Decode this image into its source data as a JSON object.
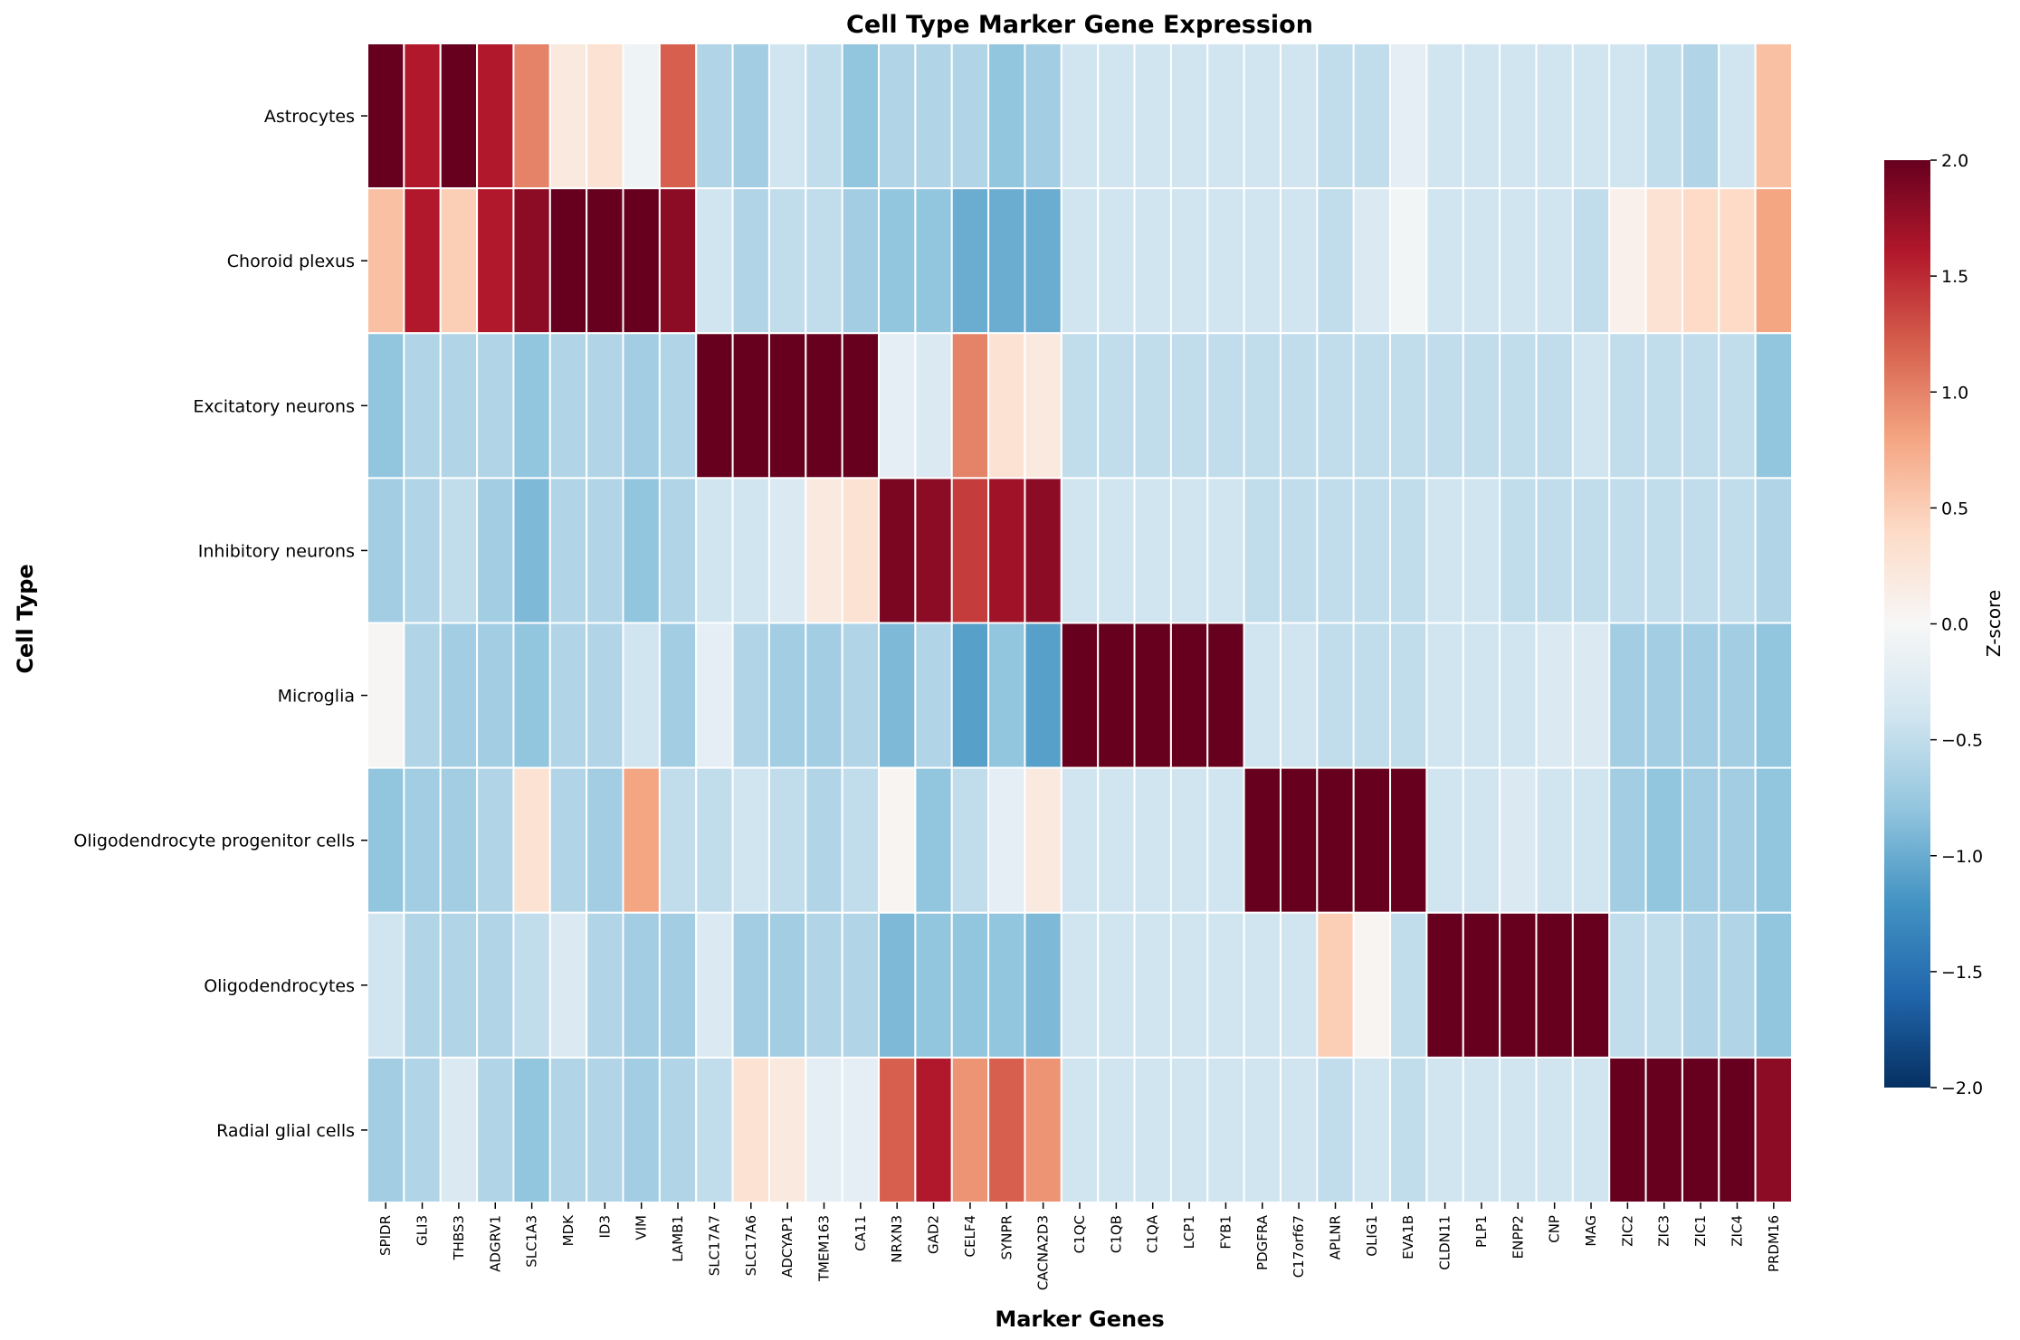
{
  "chart_data": {
    "type": "heatmap",
    "title": "Cell Type Marker Gene Expression",
    "xlabel": "Marker Genes",
    "ylabel": "Cell Type",
    "colorbar_label": "Z-score",
    "colorbar_range": [
      -2,
      2
    ],
    "colorbar_ticks": [
      "2.0",
      "1.5",
      "1.0",
      "0.5",
      "0.0",
      "−0.5",
      "−1.0",
      "−1.5",
      "−2.0"
    ],
    "colormap": "RdBu_r",
    "rows": [
      "Astrocytes",
      "Choroid plexus",
      "Excitatory neurons",
      "Inhibitory neurons",
      "Microglia",
      "Oligodendrocyte progenitor cells",
      "Oligodendrocytes",
      "Radial glial cells"
    ],
    "columns": [
      "SPIDR",
      "GLI3",
      "THBS3",
      "ADGRV1",
      "SLC1A3",
      "MDK",
      "ID3",
      "VIM",
      "LAMB1",
      "SLC17A7",
      "SLC17A6",
      "ADCYAP1",
      "TMEM163",
      "CA11",
      "NRXN3",
      "GAD2",
      "CELF4",
      "SYNPR",
      "CACNA2D3",
      "C1QC",
      "C1QB",
      "C1QA",
      "LCP1",
      "FYB1",
      "PDGFRA",
      "C17orf67",
      "APLNR",
      "OLIG1",
      "EVA1B",
      "CLDN11",
      "PLP1",
      "ENPP2",
      "CNP",
      "MAG",
      "ZIC2",
      "ZIC3",
      "ZIC1",
      "ZIC4",
      "PRDM16"
    ],
    "values": [
      [
        2.2,
        1.6,
        2.2,
        1.6,
        1.0,
        0.2,
        0.3,
        -0.1,
        1.2,
        -0.6,
        -0.7,
        -0.4,
        -0.5,
        -0.8,
        -0.6,
        -0.6,
        -0.6,
        -0.8,
        -0.7,
        -0.4,
        -0.4,
        -0.4,
        -0.4,
        -0.4,
        -0.4,
        -0.4,
        -0.5,
        -0.5,
        -0.2,
        -0.4,
        -0.4,
        -0.4,
        -0.4,
        -0.4,
        -0.4,
        -0.5,
        -0.6,
        -0.4,
        0.6
      ],
      [
        0.6,
        1.6,
        0.5,
        1.6,
        1.8,
        2.1,
        2.1,
        2.1,
        1.8,
        -0.4,
        -0.6,
        -0.5,
        -0.5,
        -0.7,
        -0.8,
        -0.8,
        -1.0,
        -1.0,
        -1.0,
        -0.4,
        -0.4,
        -0.4,
        -0.4,
        -0.4,
        -0.4,
        -0.4,
        -0.5,
        -0.3,
        -0.05,
        -0.4,
        -0.4,
        -0.4,
        -0.4,
        -0.5,
        0.1,
        0.3,
        0.4,
        0.4,
        0.8
      ],
      [
        -0.8,
        -0.6,
        -0.6,
        -0.6,
        -0.8,
        -0.6,
        -0.6,
        -0.7,
        -0.6,
        2.2,
        2.2,
        2.2,
        2.2,
        2.2,
        -0.2,
        -0.3,
        1.0,
        0.3,
        0.2,
        -0.5,
        -0.5,
        -0.5,
        -0.5,
        -0.5,
        -0.5,
        -0.5,
        -0.5,
        -0.5,
        -0.5,
        -0.5,
        -0.5,
        -0.5,
        -0.5,
        -0.4,
        -0.5,
        -0.5,
        -0.5,
        -0.5,
        -0.8
      ],
      [
        -0.7,
        -0.6,
        -0.5,
        -0.7,
        -0.9,
        -0.6,
        -0.6,
        -0.8,
        -0.6,
        -0.4,
        -0.4,
        -0.3,
        0.2,
        0.3,
        1.9,
        1.8,
        1.4,
        1.7,
        1.8,
        -0.4,
        -0.4,
        -0.4,
        -0.4,
        -0.4,
        -0.5,
        -0.5,
        -0.5,
        -0.5,
        -0.5,
        -0.4,
        -0.4,
        -0.5,
        -0.5,
        -0.5,
        -0.5,
        -0.5,
        -0.5,
        -0.5,
        -0.6
      ],
      [
        0.03,
        -0.6,
        -0.7,
        -0.7,
        -0.8,
        -0.6,
        -0.6,
        -0.4,
        -0.7,
        -0.2,
        -0.6,
        -0.7,
        -0.7,
        -0.6,
        -0.9,
        -0.6,
        -1.1,
        -0.8,
        -1.1,
        2.2,
        2.2,
        2.2,
        2.2,
        2.2,
        -0.4,
        -0.4,
        -0.5,
        -0.5,
        -0.5,
        -0.4,
        -0.4,
        -0.4,
        -0.3,
        -0.3,
        -0.7,
        -0.7,
        -0.7,
        -0.7,
        -0.8
      ],
      [
        -0.8,
        -0.7,
        -0.7,
        -0.6,
        0.3,
        -0.6,
        -0.7,
        0.8,
        -0.5,
        -0.5,
        -0.4,
        -0.5,
        -0.6,
        -0.5,
        0.05,
        -0.8,
        -0.5,
        -0.2,
        0.2,
        -0.4,
        -0.4,
        -0.4,
        -0.4,
        -0.4,
        2.2,
        2.2,
        2.2,
        2.2,
        2.2,
        -0.4,
        -0.4,
        -0.3,
        -0.4,
        -0.4,
        -0.7,
        -0.8,
        -0.7,
        -0.7,
        -0.8
      ],
      [
        -0.4,
        -0.6,
        -0.6,
        -0.6,
        -0.5,
        -0.3,
        -0.6,
        -0.7,
        -0.7,
        -0.3,
        -0.7,
        -0.7,
        -0.6,
        -0.6,
        -0.9,
        -0.8,
        -0.8,
        -0.8,
        -0.9,
        -0.4,
        -0.4,
        -0.4,
        -0.4,
        -0.4,
        -0.4,
        -0.4,
        0.5,
        0.05,
        -0.5,
        2.2,
        2.2,
        2.2,
        2.2,
        2.2,
        -0.5,
        -0.5,
        -0.6,
        -0.6,
        -0.8
      ],
      [
        -0.7,
        -0.6,
        -0.3,
        -0.6,
        -0.8,
        -0.6,
        -0.6,
        -0.7,
        -0.6,
        -0.5,
        0.3,
        0.2,
        -0.2,
        -0.2,
        1.2,
        1.6,
        0.9,
        1.2,
        0.9,
        -0.4,
        -0.4,
        -0.4,
        -0.4,
        -0.4,
        -0.4,
        -0.4,
        -0.5,
        -0.4,
        -0.5,
        -0.4,
        -0.4,
        -0.4,
        -0.4,
        -0.4,
        2.2,
        2.2,
        2.2,
        2.2,
        1.8
      ]
    ]
  }
}
